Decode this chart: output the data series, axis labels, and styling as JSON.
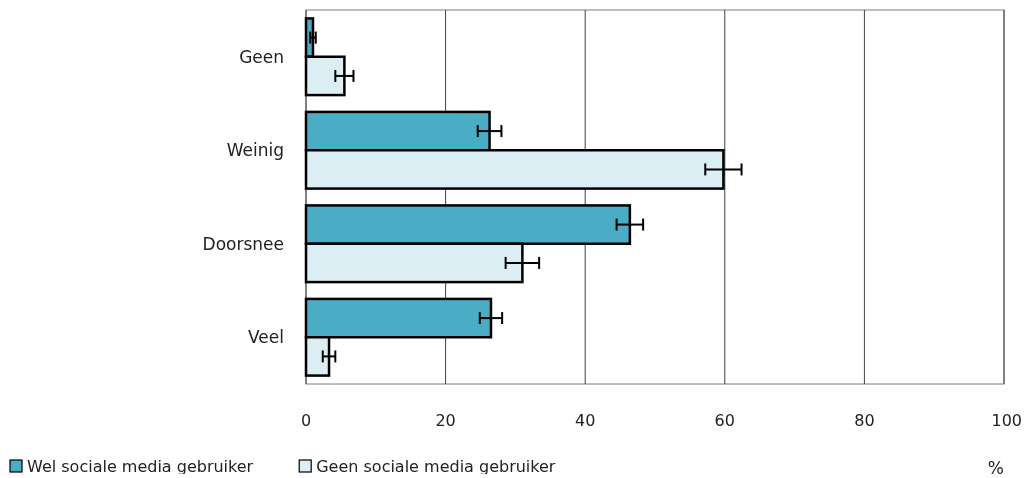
{
  "chart_data": {
    "type": "bar",
    "orientation": "horizontal",
    "categories": [
      "Geen",
      "Weinig",
      "Doorsnee",
      "Veel"
    ],
    "series": [
      {
        "name": "Wel sociale media gebruiker",
        "color": "#4bacc6",
        "values": [
          1.0,
          26.3,
          46.4,
          26.5
        ],
        "errors": [
          0.4,
          1.7,
          1.9,
          1.6
        ]
      },
      {
        "name": "Geen sociale media gebruiker",
        "color": "#dbeef4",
        "values": [
          5.5,
          59.8,
          31.0,
          3.3
        ],
        "errors": [
          1.3,
          2.6,
          2.4,
          0.9
        ]
      }
    ],
    "xlim": [
      0,
      100
    ],
    "xticks": [
      0,
      20,
      40,
      60,
      80,
      100
    ],
    "xlabel": "%",
    "grid": "x",
    "legend": "bottom left"
  }
}
